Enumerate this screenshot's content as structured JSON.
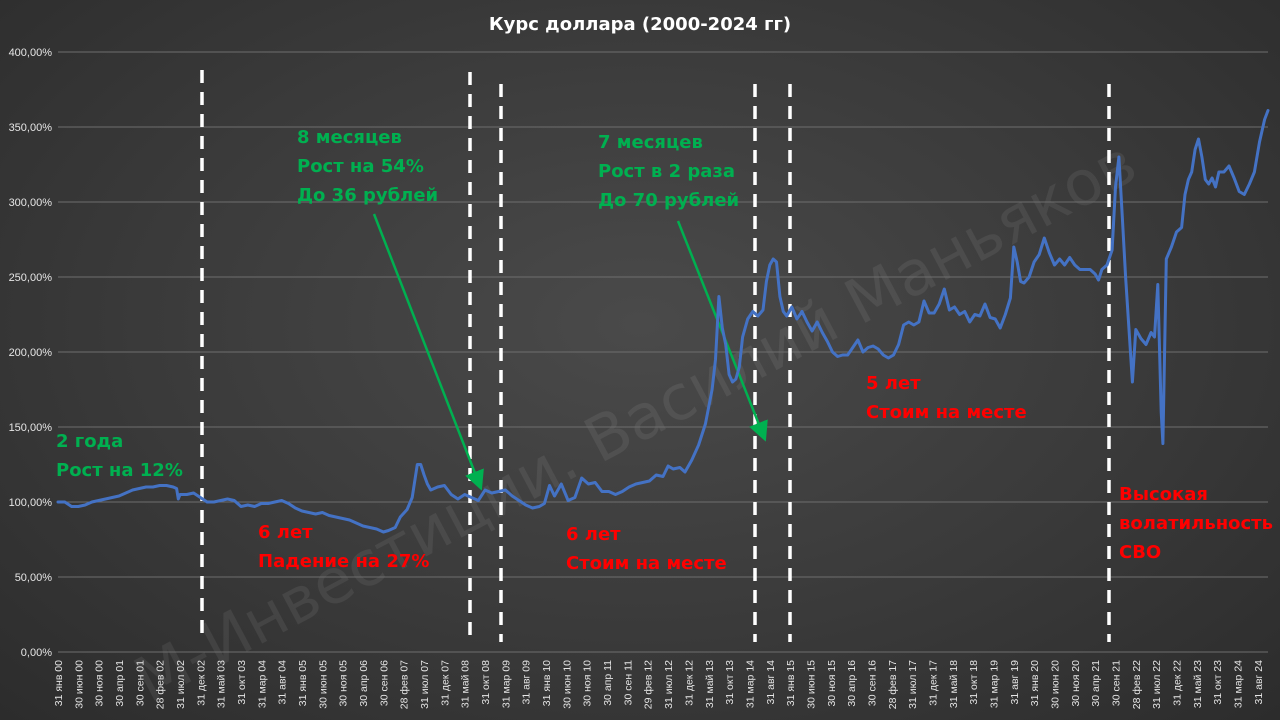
{
  "chart_data": {
    "type": "line",
    "title": "Курс доллара (2000-2024 гг)",
    "watermark": "М-Инвестиции. Василий Маньяков",
    "x": [
      "31 янв 00",
      "30 июн 00",
      "30 ноя 00",
      "30 апр 01",
      "30 сен 01",
      "28 фев 02",
      "31 июл 02",
      "31 дек 02",
      "31 май 03",
      "31 окт 03",
      "31 мар 04",
      "31 авг 04",
      "31 янв 05",
      "30 июн 05",
      "30 ноя 05",
      "30 апр 06",
      "30 сен 06",
      "28 фев 07",
      "31 июл 07",
      "31 дек 07",
      "31 май 08",
      "31 окт 08",
      "31 мар 09",
      "31 авг 09",
      "31 янв 10",
      "30 июн 10",
      "30 ноя 10",
      "30 апр 11",
      "30 сен 11",
      "29 фев 12",
      "31 июл 12",
      "31 дек 12",
      "31 май 13",
      "31 окт 13",
      "31 мар 14",
      "31 авг 14",
      "31 янв 15",
      "30 июн 15",
      "30 ноя 15",
      "30 апр 16",
      "30 сен 16",
      "28 фев 17",
      "31 июл 17",
      "31 дек 17",
      "31 май 18",
      "31 окт 18",
      "31 мар 19",
      "31 авг 19",
      "31 янв 20",
      "30 июн 20",
      "30 ноя 20",
      "30 апр 21",
      "30 сен 21",
      "28 фев 22",
      "31 июл 22",
      "31 дек 22",
      "31 май 23",
      "31 окт 23",
      "31 мар 24",
      "31 авг 24"
    ],
    "ylim": [
      0,
      400
    ],
    "yticks": [
      "0,00%",
      "50,00%",
      "100,00%",
      "150,00%",
      "200,00%",
      "250,00%",
      "300,00%",
      "350,00%",
      "400,00%"
    ],
    "grid": true,
    "series": [
      {
        "color": "#4472c4",
        "values": [
          [
            0,
            100
          ],
          [
            4,
            100
          ],
          [
            8,
            97
          ],
          [
            12,
            97
          ],
          [
            16,
            98
          ],
          [
            20,
            100
          ],
          [
            24,
            101
          ],
          [
            28,
            102
          ],
          [
            32,
            103
          ],
          [
            36,
            104
          ],
          [
            40,
            106
          ],
          [
            44,
            108
          ],
          [
            48,
            109
          ],
          [
            52,
            110
          ],
          [
            56,
            110
          ],
          [
            60,
            111
          ],
          [
            64,
            111
          ],
          [
            68,
            110
          ],
          [
            70,
            109
          ],
          [
            71,
            102
          ],
          [
            72,
            105
          ],
          [
            76,
            105
          ],
          [
            80,
            106
          ],
          [
            84,
            103
          ],
          [
            88,
            100
          ],
          [
            92,
            100
          ],
          [
            96,
            101
          ],
          [
            100,
            102
          ],
          [
            104,
            101
          ],
          [
            108,
            97
          ],
          [
            112,
            98
          ],
          [
            116,
            97
          ],
          [
            120,
            99
          ],
          [
            124,
            99
          ],
          [
            128,
            100
          ],
          [
            132,
            101
          ],
          [
            136,
            99
          ],
          [
            140,
            96
          ],
          [
            144,
            94
          ],
          [
            148,
            93
          ],
          [
            152,
            92
          ],
          [
            156,
            93
          ],
          [
            160,
            91
          ],
          [
            164,
            90
          ],
          [
            168,
            89
          ],
          [
            172,
            88
          ],
          [
            176,
            86
          ],
          [
            180,
            84
          ],
          [
            184,
            83
          ],
          [
            188,
            82
          ],
          [
            192,
            80
          ],
          [
            195,
            81
          ],
          [
            199,
            83
          ],
          [
            202,
            90
          ],
          [
            206,
            95
          ],
          [
            209,
            103
          ],
          [
            212,
            125
          ],
          [
            214,
            125
          ],
          [
            216,
            118
          ],
          [
            218,
            112
          ],
          [
            220,
            108
          ],
          [
            224,
            110
          ],
          [
            228,
            111
          ],
          [
            232,
            105
          ],
          [
            236,
            102
          ],
          [
            240,
            105
          ],
          [
            244,
            103
          ],
          [
            248,
            101
          ],
          [
            252,
            108
          ],
          [
            256,
            106
          ],
          [
            260,
            107
          ],
          [
            264,
            108
          ],
          [
            268,
            104
          ],
          [
            272,
            101
          ],
          [
            276,
            98
          ],
          [
            280,
            96
          ],
          [
            284,
            97
          ],
          [
            287,
            99
          ],
          [
            290,
            111
          ],
          [
            293,
            104
          ],
          [
            297,
            112
          ],
          [
            301,
            101
          ],
          [
            305,
            103
          ],
          [
            309,
            116
          ],
          [
            313,
            112
          ],
          [
            317,
            113
          ],
          [
            321,
            107
          ],
          [
            325,
            107
          ],
          [
            329,
            105
          ],
          [
            333,
            107
          ],
          [
            337,
            110
          ],
          [
            341,
            112
          ],
          [
            345,
            113
          ],
          [
            349,
            114
          ],
          [
            353,
            118
          ],
          [
            357,
            117
          ],
          [
            360,
            124
          ],
          [
            363,
            122
          ],
          [
            367,
            123
          ],
          [
            370,
            120
          ],
          [
            374,
            128
          ],
          [
            378,
            138
          ],
          [
            382,
            152
          ],
          [
            386,
            175
          ],
          [
            388,
            195
          ],
          [
            390,
            237
          ],
          [
            392,
            216
          ],
          [
            394,
            205
          ],
          [
            396,
            185
          ],
          [
            398,
            180
          ],
          [
            400,
            182
          ],
          [
            402,
            190
          ],
          [
            404,
            210
          ],
          [
            407,
            222
          ],
          [
            410,
            227
          ],
          [
            413,
            224
          ],
          [
            416,
            228
          ],
          [
            418,
            247
          ],
          [
            420,
            258
          ],
          [
            422,
            262
          ],
          [
            424,
            260
          ],
          [
            426,
            237
          ],
          [
            428,
            227
          ],
          [
            430,
            224
          ],
          [
            433,
            230
          ],
          [
            436,
            222
          ],
          [
            439,
            227
          ],
          [
            442,
            220
          ],
          [
            445,
            214
          ],
          [
            448,
            220
          ],
          [
            451,
            213
          ],
          [
            454,
            207
          ],
          [
            457,
            200
          ],
          [
            460,
            197
          ],
          [
            463,
            198
          ],
          [
            466,
            198
          ],
          [
            469,
            203
          ],
          [
            472,
            208
          ],
          [
            475,
            200
          ],
          [
            478,
            203
          ],
          [
            481,
            204
          ],
          [
            484,
            202
          ],
          [
            487,
            198
          ],
          [
            490,
            196
          ],
          [
            493,
            198
          ],
          [
            496,
            205
          ],
          [
            499,
            218
          ],
          [
            502,
            220
          ],
          [
            505,
            218
          ],
          [
            508,
            220
          ],
          [
            511,
            234
          ],
          [
            514,
            226
          ],
          [
            517,
            226
          ],
          [
            520,
            232
          ],
          [
            523,
            242
          ],
          [
            526,
            228
          ],
          [
            529,
            230
          ],
          [
            532,
            225
          ],
          [
            535,
            227
          ],
          [
            538,
            220
          ],
          [
            541,
            225
          ],
          [
            544,
            224
          ],
          [
            547,
            232
          ],
          [
            550,
            223
          ],
          [
            553,
            222
          ],
          [
            556,
            216
          ],
          [
            559,
            225
          ],
          [
            562,
            236
          ],
          [
            564,
            270
          ],
          [
            566,
            260
          ],
          [
            568,
            247
          ],
          [
            570,
            246
          ],
          [
            573,
            250
          ],
          [
            576,
            260
          ],
          [
            579,
            265
          ],
          [
            582,
            276
          ],
          [
            585,
            266
          ],
          [
            588,
            258
          ],
          [
            591,
            262
          ],
          [
            594,
            258
          ],
          [
            597,
            263
          ],
          [
            600,
            258
          ],
          [
            603,
            255
          ],
          [
            606,
            255
          ],
          [
            609,
            255
          ],
          [
            612,
            252
          ],
          [
            614,
            248
          ],
          [
            616,
            255
          ],
          [
            619,
            258
          ],
          [
            622,
            268
          ],
          [
            624,
            310
          ],
          [
            626,
            330
          ],
          [
            628,
            290
          ],
          [
            630,
            250
          ],
          [
            632,
            215
          ],
          [
            634,
            180
          ],
          [
            636,
            215
          ],
          [
            639,
            209
          ],
          [
            642,
            205
          ],
          [
            645,
            213
          ],
          [
            647,
            210
          ],
          [
            649,
            245
          ],
          [
            651,
            160
          ],
          [
            652,
            139
          ],
          [
            654,
            262
          ],
          [
            657,
            270
          ],
          [
            660,
            280
          ],
          [
            663,
            283
          ],
          [
            665,
            305
          ],
          [
            667,
            315
          ],
          [
            669,
            320
          ],
          [
            671,
            335
          ],
          [
            673,
            342
          ],
          [
            675,
            330
          ],
          [
            677,
            315
          ],
          [
            679,
            312
          ],
          [
            681,
            316
          ],
          [
            683,
            310
          ],
          [
            685,
            320
          ],
          [
            688,
            320
          ],
          [
            691,
            324
          ],
          [
            694,
            316
          ],
          [
            697,
            307
          ],
          [
            700,
            305
          ],
          [
            703,
            312
          ],
          [
            706,
            320
          ],
          [
            709,
            340
          ],
          [
            712,
            355
          ],
          [
            714,
            361
          ]
        ]
      }
    ],
    "annotations": [
      {
        "id": "a1",
        "lines": [
          "2 года",
          "Рост на 12%"
        ],
        "color": "#00b050"
      },
      {
        "id": "a2",
        "lines": [
          "6 лет",
          "Падение на 27%"
        ],
        "color": "#ff0000"
      },
      {
        "id": "a3",
        "lines": [
          "8 месяцев",
          "Рост на 54%",
          "До 36 рублей"
        ],
        "color": "#00b050"
      },
      {
        "id": "a4",
        "lines": [
          "6 лет",
          "Стоим на месте"
        ],
        "color": "#ff0000"
      },
      {
        "id": "a5",
        "lines": [
          "7 месяцев",
          "Рост в 2 раза",
          "До 70 рублей"
        ],
        "color": "#00b050"
      },
      {
        "id": "a6",
        "lines": [
          "5 лет",
          "Стоим на месте"
        ],
        "color": "#ff0000"
      },
      {
        "id": "a7",
        "lines": [
          "Высокая",
          "волатильность",
          "СВО"
        ],
        "color": "#ff0000"
      }
    ]
  }
}
